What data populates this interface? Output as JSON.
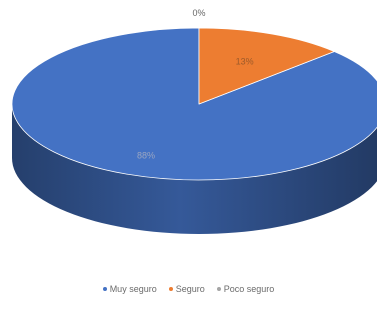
{
  "chart_data": {
    "type": "pie",
    "style": "3d",
    "categories": [
      "Muy seguro",
      "Seguro",
      "Poco seguro"
    ],
    "values": [
      88,
      13,
      0
    ],
    "labels": [
      "88%",
      "13%",
      "0%"
    ],
    "colors": [
      "#4472C4",
      "#ED7D31",
      "#A5A5A5"
    ],
    "legend_position": "bottom"
  }
}
